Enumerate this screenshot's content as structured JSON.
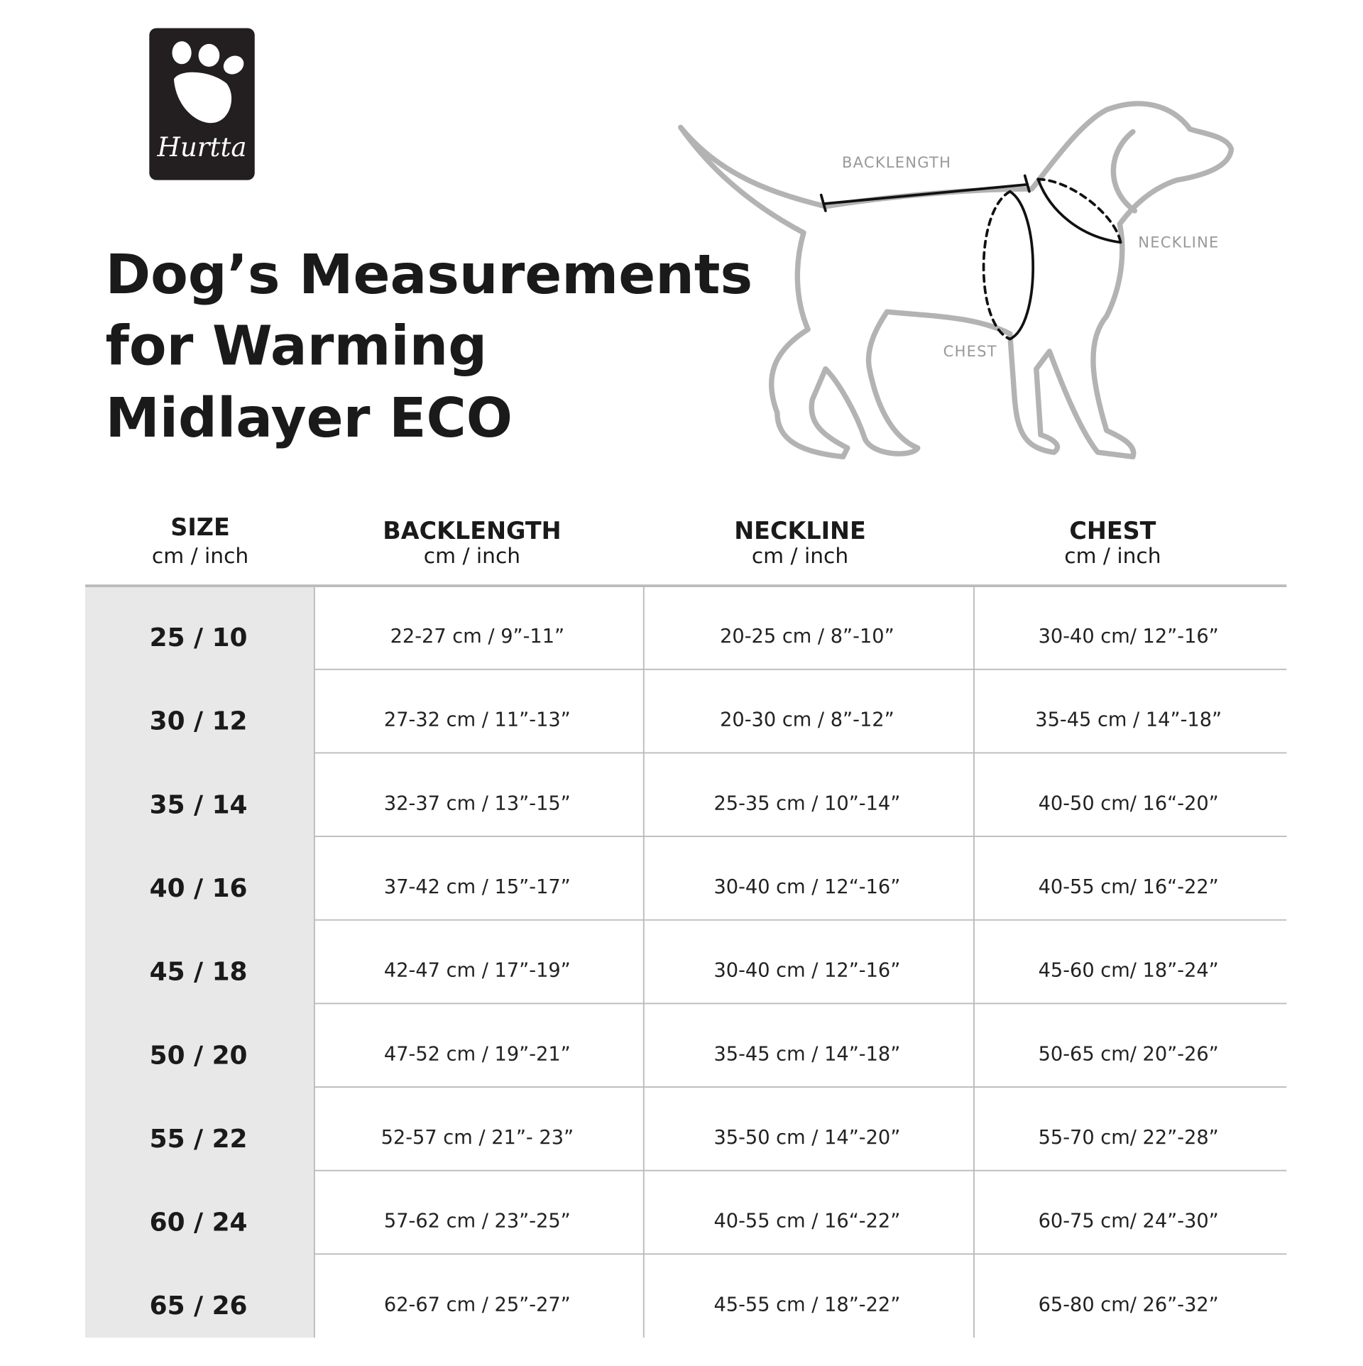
{
  "logo": {
    "text": "Hurtta"
  },
  "title_lines": [
    "Dog’s Measurements",
    "for Warming",
    "Midlayer ECO"
  ],
  "diagram": {
    "labels": {
      "backlength": "BACKLENGTH",
      "neckline": "NECKLINE",
      "chest": "CHEST"
    }
  },
  "table": {
    "headers": [
      {
        "label": "SIZE",
        "unit": "cm / inch"
      },
      {
        "label": "BACKLENGTH",
        "unit": "cm / inch"
      },
      {
        "label": "NECKLINE",
        "unit": "cm / inch"
      },
      {
        "label": "CHEST",
        "unit": "cm / inch"
      }
    ],
    "rows": [
      [
        "25 / 10",
        "22-27 cm / 9”-11”",
        "20-25 cm / 8”-10”",
        "30-40 cm/ 12”-16”"
      ],
      [
        "30 / 12",
        "27-32 cm / 11”-13”",
        "20-30 cm / 8”-12”",
        "35-45 cm / 14”-18”"
      ],
      [
        "35 / 14",
        "32-37 cm / 13”-15”",
        "25-35 cm / 10”-14”",
        "40-50 cm/ 16“-20”"
      ],
      [
        "40 / 16",
        "37-42 cm / 15”-17”",
        "30-40 cm / 12“-16”",
        "40-55 cm/ 16“-22”"
      ],
      [
        "45 / 18",
        "42-47 cm / 17”-19”",
        "30-40 cm / 12”-16”",
        "45-60 cm/ 18”-24”"
      ],
      [
        "50 / 20",
        "47-52 cm / 19”-21”",
        "35-45 cm / 14”-18”",
        "50-65 cm/ 20”-26”"
      ],
      [
        "55 / 22",
        "52-57 cm / 21”- 23”",
        "35-50 cm / 14”-20”",
        "55-70 cm/ 22”-28”"
      ],
      [
        "60 / 24",
        "57-62 cm / 23”-25”",
        "40-55 cm / 16“-22”",
        "60-75 cm/ 24”-30”"
      ],
      [
        "65 / 26",
        "62-67 cm / 25”-27”",
        "45-55 cm / 18”-22”",
        "65-80 cm/ 26”-32”"
      ]
    ]
  }
}
